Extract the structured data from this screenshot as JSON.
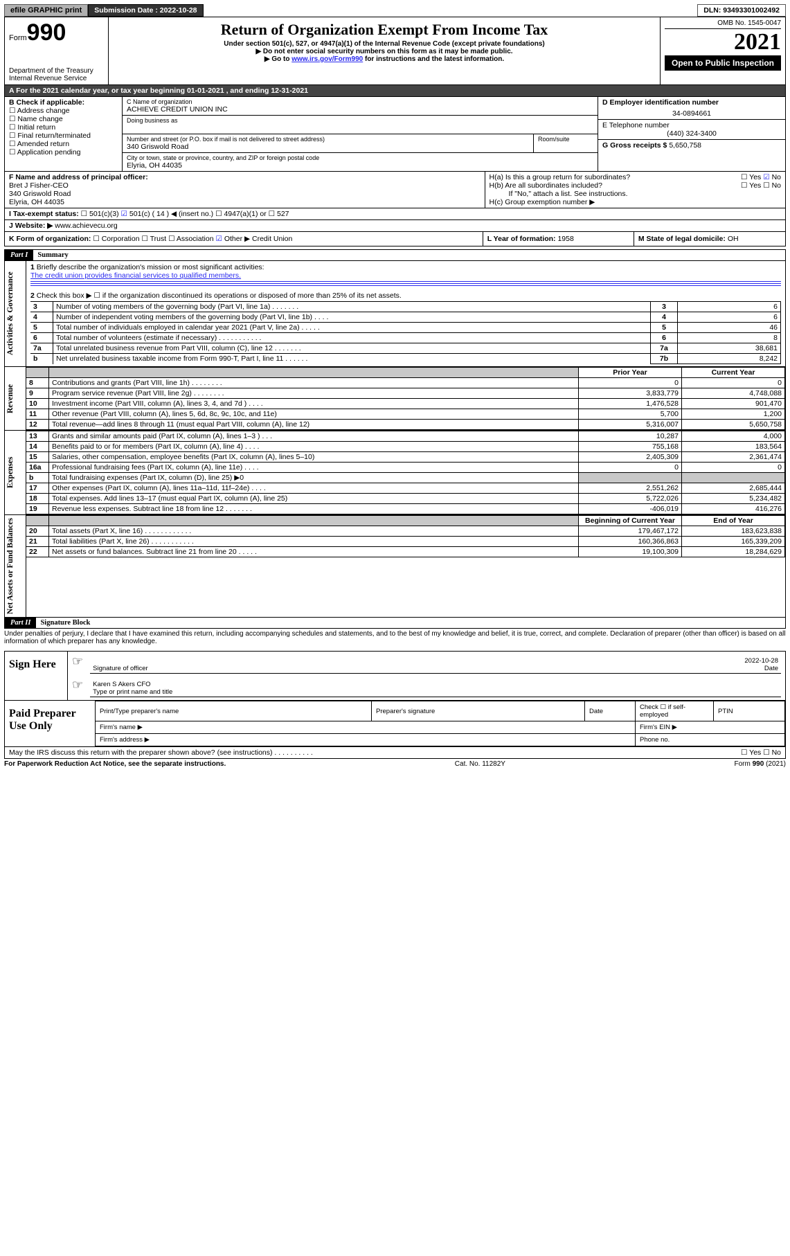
{
  "topbar": {
    "efile": "efile GRAPHIC print",
    "sub_date_label": "Submission Date : 2022-10-28",
    "dln": "DLN: 93493301002492"
  },
  "header": {
    "form_label": "Form",
    "form_number": "990",
    "dept": "Department of the Treasury",
    "irs": "Internal Revenue Service",
    "title": "Return of Organization Exempt From Income Tax",
    "sub1": "Under section 501(c), 527, or 4947(a)(1) of the Internal Revenue Code (except private foundations)",
    "sub2": "▶ Do not enter social security numbers on this form as it may be made public.",
    "sub3_pre": "▶ Go to ",
    "sub3_link": "www.irs.gov/Form990",
    "sub3_post": " for instructions and the latest information.",
    "omb": "OMB No. 1545-0047",
    "year": "2021",
    "open": "Open to Public Inspection"
  },
  "period": "A For the 2021 calendar year, or tax year beginning 01-01-2021   , and ending 12-31-2021",
  "box_b": {
    "title": "B Check if applicable:",
    "items": [
      "Address change",
      "Name change",
      "Initial return",
      "Final return/terminated",
      "Amended return",
      "Application pending"
    ]
  },
  "box_c": {
    "name_label": "C Name of organization",
    "name": "ACHIEVE CREDIT UNION INC",
    "dba_label": "Doing business as",
    "addr_label": "Number and street (or P.O. box if mail is not delivered to street address)",
    "room_label": "Room/suite",
    "addr": "340 Griswold Road",
    "city_label": "City or town, state or province, country, and ZIP or foreign postal code",
    "city": "Elyria, OH  44035"
  },
  "box_d": {
    "label": "D Employer identification number",
    "value": "34-0894661"
  },
  "box_e": {
    "label": "E Telephone number",
    "value": "(440) 324-3400"
  },
  "box_g": {
    "label": "G Gross receipts $",
    "value": "5,650,758"
  },
  "box_f": {
    "label": "F Name and address of principal officer:",
    "name": "Bret J Fisher-CEO",
    "addr": "340 Griswold Road",
    "city": "Elyria, OH  44035"
  },
  "box_h": {
    "ha": "H(a)  Is this a group return for subordinates?",
    "hb": "H(b)  Are all subordinates included?",
    "hb2": "If \"No,\" attach a list. See instructions.",
    "hc": "H(c)  Group exemption number ▶",
    "yes": "Yes",
    "no": "No"
  },
  "tax_status": {
    "label_i": "I  Tax-exempt status:",
    "c3": "501(c)(3)",
    "c14": "501(c) ( 14 ) ◀ (insert no.)",
    "a1": "4947(a)(1) or",
    "s527": "527",
    "label_j": "J  Website: ▶",
    "website": "www.achievecu.org"
  },
  "box_k": {
    "label": "K Form of organization:",
    "corp": "Corporation",
    "trust": "Trust",
    "assoc": "Association",
    "other": "Other ▶",
    "other_val": "Credit Union"
  },
  "box_l": {
    "label": "L Year of formation:",
    "value": "1958"
  },
  "box_m": {
    "label": "M State of legal domicile:",
    "value": "OH"
  },
  "part1": {
    "bar": "Part I",
    "title": "Summary",
    "q1": "Briefly describe the organization's mission or most significant activities:",
    "mission": "The credit union provides financial services to qualified members.",
    "q2": "Check this box ▶ ☐  if the organization discontinued its operations or disposed of more than 25% of its net assets.",
    "tabs": {
      "gov": "Activities & Governance",
      "rev": "Revenue",
      "exp": "Expenses",
      "net": "Net Assets or Fund Balances"
    },
    "cols": {
      "prior": "Prior Year",
      "current": "Current Year",
      "boy": "Beginning of Current Year",
      "eoy": "End of Year"
    },
    "rows": [
      {
        "n": "3",
        "label": "Number of voting members of the governing body (Part VI, line 1a)   .    .    .    .    .    .    .",
        "box": "3",
        "v": "6"
      },
      {
        "n": "4",
        "label": "Number of independent voting members of the governing body (Part VI, line 1b)   .    .    .    .",
        "box": "4",
        "v": "6"
      },
      {
        "n": "5",
        "label": "Total number of individuals employed in calendar year 2021 (Part V, line 2a)   .    .    .    .    .",
        "box": "5",
        "v": "46"
      },
      {
        "n": "6",
        "label": "Total number of volunteers (estimate if necessary)   .    .    .    .    .    .    .    .    .    .    .",
        "box": "6",
        "v": "8"
      },
      {
        "n": "7a",
        "label": "Total unrelated business revenue from Part VIII, column (C), line 12  .    .    .    .    .    .    .",
        "box": "7a",
        "v": "38,681"
      },
      {
        "n": "b",
        "label": "Net unrelated business taxable income from Form 990-T, Part I, line 11  .    .    .    .    .    .",
        "box": "7b",
        "v": "8,242"
      }
    ],
    "rev_rows": [
      {
        "n": "8",
        "label": "Contributions and grants (Part VIII, line 1h)   .    .    .    .    .    .    .    .",
        "p": "0",
        "c": "0"
      },
      {
        "n": "9",
        "label": "Program service revenue (Part VIII, line 2g)   .    .    .    .    .    .    .    .",
        "p": "3,833,779",
        "c": "4,748,088"
      },
      {
        "n": "10",
        "label": "Investment income (Part VIII, column (A), lines 3, 4, and 7d )   .    .    .    .",
        "p": "1,476,528",
        "c": "901,470"
      },
      {
        "n": "11",
        "label": "Other revenue (Part VIII, column (A), lines 5, 6d, 8c, 9c, 10c, and 11e)",
        "p": "5,700",
        "c": "1,200"
      },
      {
        "n": "12",
        "label": "Total revenue—add lines 8 through 11 (must equal Part VIII, column (A), line 12)",
        "p": "5,316,007",
        "c": "5,650,758"
      }
    ],
    "exp_rows": [
      {
        "n": "13",
        "label": "Grants and similar amounts paid (Part IX, column (A), lines 1–3 )   .    .    .",
        "p": "10,287",
        "c": "4,000"
      },
      {
        "n": "14",
        "label": "Benefits paid to or for members (Part IX, column (A), line 4)   .    .    .    .",
        "p": "755,168",
        "c": "183,564"
      },
      {
        "n": "15",
        "label": "Salaries, other compensation, employee benefits (Part IX, column (A), lines 5–10)",
        "p": "2,405,309",
        "c": "2,361,474"
      },
      {
        "n": "16a",
        "label": "Professional fundraising fees (Part IX, column (A), line 11e)   .    .    .    .",
        "p": "0",
        "c": "0"
      },
      {
        "n": "b",
        "label": "Total fundraising expenses (Part IX, column (D), line 25) ▶0",
        "p": "",
        "c": "",
        "shade": true
      },
      {
        "n": "17",
        "label": "Other expenses (Part IX, column (A), lines 11a–11d, 11f–24e)   .    .    .    .",
        "p": "2,551,262",
        "c": "2,685,444"
      },
      {
        "n": "18",
        "label": "Total expenses. Add lines 13–17 (must equal Part IX, column (A), line 25)",
        "p": "5,722,026",
        "c": "5,234,482"
      },
      {
        "n": "19",
        "label": "Revenue less expenses. Subtract line 18 from line 12   .    .    .    .    .    .    .",
        "p": "-406,019",
        "c": "416,276"
      }
    ],
    "net_rows": [
      {
        "n": "20",
        "label": "Total assets (Part X, line 16)   .    .    .    .    .    .    .    .    .    .    .    .",
        "p": "179,467,172",
        "c": "183,623,838"
      },
      {
        "n": "21",
        "label": "Total liabilities (Part X, line 26)   .    .    .    .    .    .    .    .    .    .    .",
        "p": "160,366,863",
        "c": "165,339,209"
      },
      {
        "n": "22",
        "label": "Net assets or fund balances. Subtract line 21 from line 20   .    .    .    .    .",
        "p": "19,100,309",
        "c": "18,284,629"
      }
    ]
  },
  "part2": {
    "bar": "Part II",
    "title": "Signature Block",
    "perjury": "Under penalties of perjury, I declare that I have examined this return, including accompanying schedules and statements, and to the best of my knowledge and belief, it is true, correct, and complete. Declaration of preparer (other than officer) is based on all information of which preparer has any knowledge."
  },
  "sign": {
    "here": "Sign Here",
    "sig_label": "Signature of officer",
    "date_label": "Date",
    "date": "2022-10-28",
    "name": "Karen S Akers  CFO",
    "name_label": "Type or print name and title"
  },
  "paid": {
    "side": "Paid Preparer Use Only",
    "h1": "Print/Type preparer's name",
    "h2": "Preparer's signature",
    "h3": "Date",
    "h4_pre": "Check ☐ if self-employed",
    "h5": "PTIN",
    "firm_name": "Firm's name   ▶",
    "firm_ein": "Firm's EIN ▶",
    "firm_addr": "Firm's address ▶",
    "phone": "Phone no."
  },
  "discuss": "May the IRS discuss this return with the preparer shown above? (see instructions)   .    .    .    .    .    .    .    .    .    .",
  "foot": {
    "left": "For Paperwork Reduction Act Notice, see the separate instructions.",
    "mid": "Cat. No. 11282Y",
    "right": "Form 990 (2021)"
  }
}
